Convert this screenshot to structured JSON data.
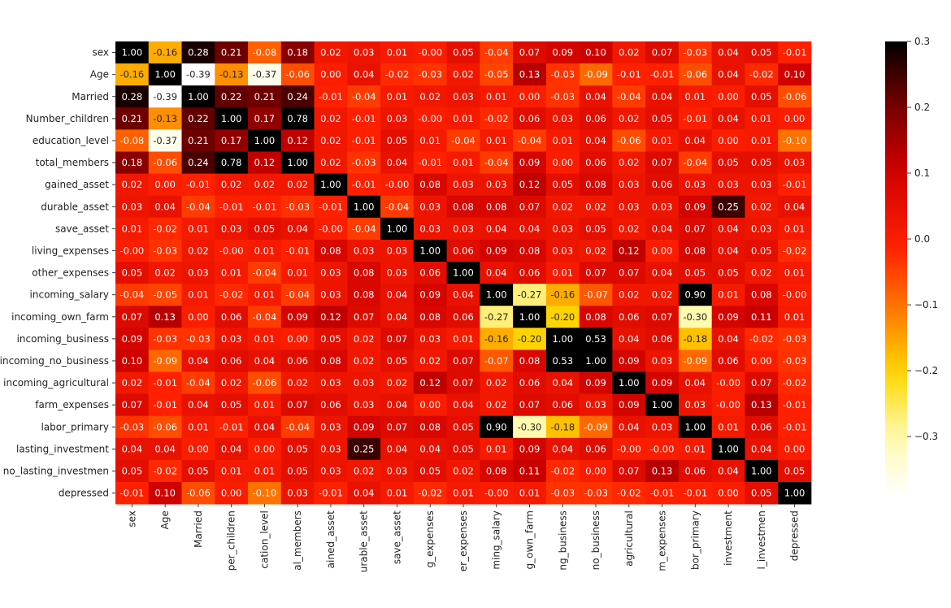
{
  "chart_data": {
    "type": "heatmap",
    "title": "",
    "colormap": "hot_r",
    "color_range": [
      -0.39,
      0.3
    ],
    "colorbar_ticks": [
      "0.3",
      "0.2",
      "0.1",
      "0.0",
      "−0.1",
      "−0.2",
      "−0.3"
    ],
    "colorbar_tick_values": [
      0.3,
      0.2,
      0.1,
      0.0,
      -0.1,
      -0.2,
      -0.3
    ],
    "row_labels": [
      "sex",
      "Age",
      "Married",
      "Number_children",
      "education_level",
      "total_members",
      "gained_asset",
      "durable_asset",
      "save_asset",
      "living_expenses",
      "other_expenses",
      "incoming_salary",
      "incoming_own_farm",
      "incoming_business",
      "incoming_no_business",
      "incoming_agricultural",
      "farm_expenses",
      "labor_primary",
      "lasting_investment",
      "no_lasting_investmen",
      "depressed"
    ],
    "column_labels": [
      "sex",
      "Age",
      "Married",
      "per_children",
      "cation_level",
      "al_members",
      "ained_asset",
      "urable_asset",
      "save_asset",
      "g_expenses",
      "er_expenses",
      "ming_salary",
      "g_own_farm",
      "ng_business",
      "no_business",
      "agricultural",
      "m_expenses",
      "bor_primary",
      "investment",
      "l_investmen",
      "depressed"
    ],
    "values": [
      [
        1.0,
        -0.16,
        0.28,
        0.21,
        -0.08,
        0.18,
        0.02,
        0.03,
        0.01,
        -0.0,
        0.05,
        -0.04,
        0.07,
        0.09,
        0.1,
        0.02,
        0.07,
        -0.03,
        0.04,
        0.05,
        -0.01
      ],
      [
        -0.16,
        1.0,
        -0.39,
        -0.13,
        -0.37,
        -0.06,
        0.0,
        0.04,
        -0.02,
        -0.03,
        0.02,
        -0.05,
        0.13,
        -0.03,
        -0.09,
        -0.01,
        -0.01,
        -0.06,
        0.04,
        -0.02,
        0.1
      ],
      [
        0.28,
        -0.39,
        1.0,
        0.22,
        0.21,
        0.24,
        -0.01,
        -0.04,
        0.01,
        0.02,
        0.03,
        0.01,
        0.0,
        -0.03,
        0.04,
        -0.04,
        0.04,
        0.01,
        0.0,
        0.05,
        -0.06
      ],
      [
        0.21,
        -0.13,
        0.22,
        1.0,
        0.17,
        0.78,
        0.02,
        -0.01,
        0.03,
        -0.0,
        0.01,
        -0.02,
        0.06,
        0.03,
        0.06,
        0.02,
        0.05,
        -0.01,
        0.04,
        0.01,
        0.0
      ],
      [
        -0.08,
        -0.37,
        0.21,
        0.17,
        1.0,
        0.12,
        0.02,
        -0.01,
        0.05,
        0.01,
        -0.04,
        0.01,
        -0.04,
        0.01,
        0.04,
        -0.06,
        0.01,
        0.04,
        0.0,
        0.01,
        -0.1
      ],
      [
        0.18,
        -0.06,
        0.24,
        0.78,
        0.12,
        1.0,
        0.02,
        -0.03,
        0.04,
        -0.01,
        0.01,
        -0.04,
        0.09,
        0.0,
        0.06,
        0.02,
        0.07,
        -0.04,
        0.05,
        0.05,
        0.03
      ],
      [
        0.02,
        0.0,
        -0.01,
        0.02,
        0.02,
        0.02,
        1.0,
        -0.01,
        -0.0,
        0.08,
        0.03,
        0.03,
        0.12,
        0.05,
        0.08,
        0.03,
        0.06,
        0.03,
        0.03,
        0.03,
        -0.01
      ],
      [
        0.03,
        0.04,
        -0.04,
        -0.01,
        -0.01,
        -0.03,
        -0.01,
        1.0,
        -0.04,
        0.03,
        0.08,
        0.08,
        0.07,
        0.02,
        0.02,
        0.03,
        0.03,
        0.09,
        0.25,
        0.02,
        0.04
      ],
      [
        0.01,
        -0.02,
        0.01,
        0.03,
        0.05,
        0.04,
        -0.0,
        -0.04,
        1.0,
        0.03,
        0.03,
        0.04,
        0.04,
        0.03,
        0.05,
        0.02,
        0.04,
        0.07,
        0.04,
        0.03,
        0.01
      ],
      [
        -0.0,
        -0.03,
        0.02,
        -0.0,
        0.01,
        -0.01,
        0.08,
        0.03,
        0.03,
        1.0,
        0.06,
        0.09,
        0.08,
        0.03,
        0.02,
        0.12,
        0.0,
        0.08,
        0.04,
        0.05,
        -0.02
      ],
      [
        0.05,
        0.02,
        0.03,
        0.01,
        -0.04,
        0.01,
        0.03,
        0.08,
        0.03,
        0.06,
        1.0,
        0.04,
        0.06,
        0.01,
        0.07,
        0.07,
        0.04,
        0.05,
        0.05,
        0.02,
        0.01
      ],
      [
        -0.04,
        -0.05,
        0.01,
        -0.02,
        0.01,
        -0.04,
        0.03,
        0.08,
        0.04,
        0.09,
        0.04,
        1.0,
        -0.27,
        -0.16,
        -0.07,
        0.02,
        0.02,
        0.9,
        0.01,
        0.08,
        -0.0
      ],
      [
        0.07,
        0.13,
        0.0,
        0.06,
        -0.04,
        0.09,
        0.12,
        0.07,
        0.04,
        0.08,
        0.06,
        -0.27,
        1.0,
        -0.2,
        0.08,
        0.06,
        0.07,
        -0.3,
        0.09,
        0.11,
        0.01
      ],
      [
        0.09,
        -0.03,
        -0.03,
        0.03,
        0.01,
        0.0,
        0.05,
        0.02,
        0.07,
        0.03,
        0.01,
        -0.16,
        -0.2,
        1.0,
        0.53,
        0.04,
        0.06,
        -0.18,
        0.04,
        -0.02,
        -0.03
      ],
      [
        0.1,
        -0.09,
        0.04,
        0.06,
        0.04,
        0.06,
        0.08,
        0.02,
        0.05,
        0.02,
        0.07,
        -0.07,
        0.08,
        0.53,
        1.0,
        0.09,
        0.03,
        -0.09,
        0.06,
        0.0,
        -0.03
      ],
      [
        0.02,
        -0.01,
        -0.04,
        0.02,
        -0.06,
        0.02,
        0.03,
        0.03,
        0.02,
        0.12,
        0.07,
        0.02,
        0.06,
        0.04,
        0.09,
        1.0,
        0.09,
        0.04,
        -0.0,
        0.07,
        -0.02
      ],
      [
        0.07,
        -0.01,
        0.04,
        0.05,
        0.01,
        0.07,
        0.06,
        0.03,
        0.04,
        0.0,
        0.04,
        0.02,
        0.07,
        0.06,
        0.03,
        0.09,
        1.0,
        0.03,
        -0.0,
        0.13,
        -0.01
      ],
      [
        -0.03,
        -0.06,
        0.01,
        -0.01,
        0.04,
        -0.04,
        0.03,
        0.09,
        0.07,
        0.08,
        0.05,
        0.9,
        -0.3,
        -0.18,
        -0.09,
        0.04,
        0.03,
        1.0,
        0.01,
        0.06,
        -0.01
      ],
      [
        0.04,
        0.04,
        0.0,
        0.04,
        0.0,
        0.05,
        0.03,
        0.25,
        0.04,
        0.04,
        0.05,
        0.01,
        0.09,
        0.04,
        0.06,
        -0.0,
        -0.0,
        0.01,
        1.0,
        0.04,
        0.0
      ],
      [
        0.05,
        -0.02,
        0.05,
        0.01,
        0.01,
        0.05,
        0.03,
        0.02,
        0.03,
        0.05,
        0.02,
        0.08,
        0.11,
        -0.02,
        0.0,
        0.07,
        0.13,
        0.06,
        0.04,
        1.0,
        0.05
      ],
      [
        -0.01,
        0.1,
        -0.06,
        0.0,
        -0.1,
        0.03,
        -0.01,
        0.04,
        0.01,
        -0.02,
        0.01,
        -0.0,
        0.01,
        -0.03,
        -0.03,
        -0.02,
        -0.01,
        -0.01,
        0.0,
        0.05,
        1.0
      ]
    ],
    "annotation_format": "0.00",
    "legend_placement": "right",
    "grid": false
  }
}
